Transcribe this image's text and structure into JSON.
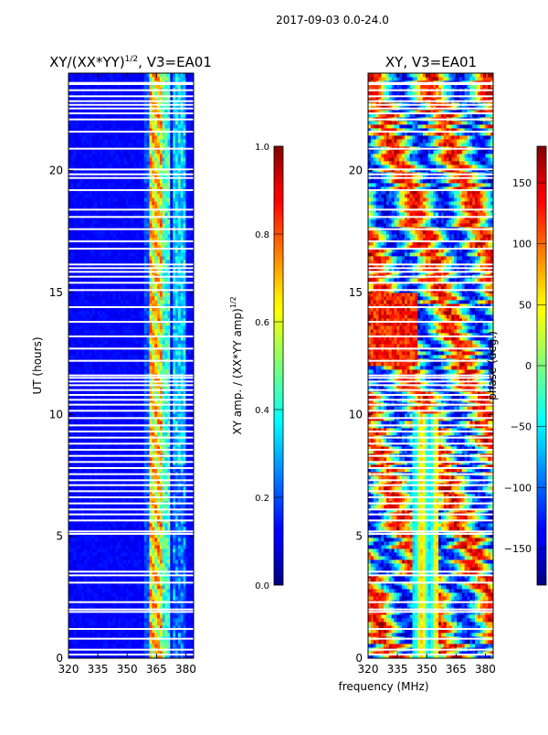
{
  "suptitle": "2017-09-03 0.0-24.0",
  "shared_xlabel": "frequency (MHz)",
  "chart_data": [
    {
      "type": "heatmap",
      "title": "XY/(XX*YY)¹ᐟ², V3=EA01",
      "title_main": "XY/(XX*YY)",
      "title_sup": "1/2",
      "title_tail": ", V3=EA01",
      "xlabel": "frequency (MHz)",
      "ylabel": "UT (hours)",
      "xlim": [
        320,
        384
      ],
      "ylim": [
        0,
        24
      ],
      "xticks": [
        320,
        335,
        350,
        365,
        380
      ],
      "yticks": [
        0,
        5,
        10,
        15,
        20
      ],
      "value_kind": "amplitude",
      "colorbar": {
        "label_main": "XY amp. / (XX*YY amp)",
        "label_sup": "1/2",
        "range": [
          0.0,
          1.0
        ],
        "ticks": [
          "0.0",
          "0.2",
          "0.4",
          "0.6",
          "0.8",
          "1.0"
        ],
        "tick_values": [
          0.0,
          0.2,
          0.4,
          0.6,
          0.8,
          1.0
        ]
      }
    },
    {
      "type": "heatmap",
      "title": "XY, V3=EA01",
      "xlabel": "frequency (MHz)",
      "ylabel": "",
      "xlim": [
        320,
        384
      ],
      "ylim": [
        0,
        24
      ],
      "xticks": [
        320,
        335,
        350,
        365,
        380
      ],
      "yticks": [
        0,
        5,
        10,
        15,
        20
      ],
      "value_kind": "phase",
      "colorbar": {
        "label": "phase (deg.)",
        "range": [
          -180,
          180
        ],
        "ticks": [
          "150",
          "100",
          "50",
          "0",
          "−50",
          "−100",
          "−150"
        ],
        "tick_values": [
          150,
          100,
          50,
          0,
          -50,
          -100,
          -150
        ]
      }
    }
  ],
  "flagged_rows_ut_hours": [
    0.15,
    0.35,
    0.8,
    1.2,
    1.9,
    2.0,
    2.3,
    3.1,
    3.4,
    3.55,
    5.1,
    5.2,
    5.65,
    5.9,
    6.1,
    6.35,
    6.6,
    6.85,
    7.1,
    7.3,
    7.55,
    7.8,
    8.05,
    8.3,
    8.55,
    8.8,
    9.05,
    9.3,
    9.55,
    9.85,
    10.15,
    10.4,
    10.6,
    10.8,
    11.0,
    11.2,
    11.35,
    11.5,
    11.6,
    12.2,
    12.7,
    13.2,
    13.8,
    14.4,
    15.1,
    15.4,
    15.65,
    15.85,
    16.0,
    16.15,
    16.8,
    17.1,
    17.6,
    18.1,
    18.4,
    19.2,
    19.7,
    19.85,
    20.05,
    20.9,
    21.6,
    22.1,
    22.35,
    22.55,
    22.7,
    22.85,
    23.05,
    23.3,
    23.55,
    23.6
  ]
}
